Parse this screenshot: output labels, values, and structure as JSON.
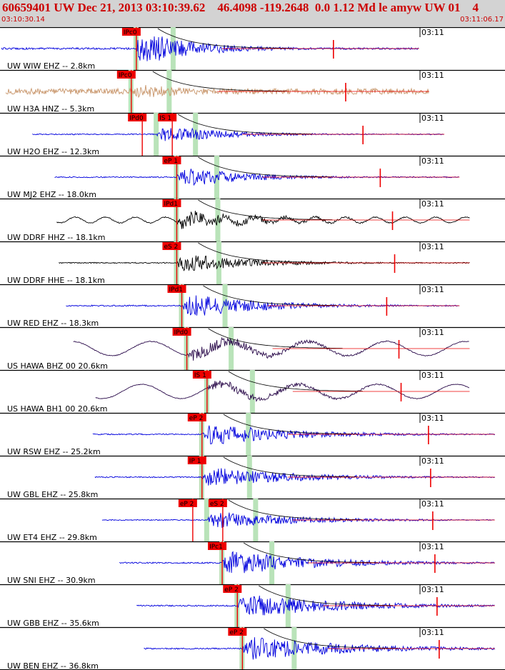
{
  "header": {
    "title": "60659401 UW Dec 21, 2013 03:10:39.62    46.4098 -119.2648  0.0 1.12 Md le amyw UW 01    4",
    "start_time": "03:10:30.14",
    "end_time": "03:11:06.17"
  },
  "colors": {
    "header_bg": "#d3d3d3",
    "header_text": "#cc0000",
    "blue_trace": "#0000dd",
    "tan_trace": "#c8956a",
    "black_trace": "#000000",
    "purple_trace": "#2a0a4a",
    "pick_red": "#ee0000",
    "window_green": "#b9e3b9"
  },
  "chart_data": {
    "type": "line",
    "title": "",
    "time_range": [
      "03:10:30.14",
      "03:11:06.17"
    ],
    "grid": false,
    "traces": [
      {
        "label": "UW WIW EHZ -- 2.8km",
        "tick": "03:11",
        "color": "blue",
        "picks": [
          "IPc0"
        ],
        "onset": 0.27,
        "end": 0.83,
        "amp": 1.0,
        "style": "spike"
      },
      {
        "label": "UW H3A HNZ -- 5.3km",
        "tick": "03:11",
        "color": "tan",
        "picks": [
          "IPc0"
        ],
        "onset": 0.26,
        "end": 0.85,
        "amp": 0.45,
        "style": "noisy"
      },
      {
        "label": "UW H2O EHZ -- 12.3km",
        "tick": "03:11",
        "color": "blue",
        "picks": [
          "IPd0",
          "IS 1"
        ],
        "onset": 0.31,
        "end": 0.88,
        "amp": 0.55,
        "style": "normal"
      },
      {
        "label": "UW MJ2 EHZ -- 18.0km",
        "tick": "03:11",
        "color": "blue",
        "picks": [
          "eP 1"
        ],
        "onset": 0.35,
        "end": 0.91,
        "amp": 0.6,
        "style": "normal"
      },
      {
        "label": "UW DDRF HHZ -- 18.1km",
        "tick": "03:11",
        "color": "black",
        "picks": [
          "IPd1"
        ],
        "onset": 0.35,
        "end": 0.93,
        "amp": 0.5,
        "style": "wavy"
      },
      {
        "label": "UW DDRF HHE -- 18.1km",
        "tick": "03:11",
        "color": "black",
        "picks": [
          "eS 2"
        ],
        "onset": 0.35,
        "end": 0.93,
        "amp": 0.55,
        "style": "normal"
      },
      {
        "label": "UW RED EHZ -- 18.3km",
        "tick": "03:11",
        "color": "blue",
        "picks": [
          "IPd1"
        ],
        "onset": 0.36,
        "end": 0.91,
        "amp": 0.7,
        "style": "normal"
      },
      {
        "label": "US HAWA BHZ 00 20.6km",
        "tick": "03:11",
        "color": "purple",
        "picks": [
          "IPd0"
        ],
        "onset": 0.37,
        "end": 0.93,
        "amp": 0.4,
        "style": "swell"
      },
      {
        "label": "US HAWA BH1 00 20.6km",
        "tick": "03:11",
        "color": "purple",
        "picks": [
          "IS 1"
        ],
        "onset": 0.41,
        "end": 0.93,
        "amp": 0.3,
        "style": "swell"
      },
      {
        "label": "UW RSW EHZ -- 25.2km",
        "tick": "03:11",
        "color": "blue",
        "picks": [
          "eP 2"
        ],
        "onset": 0.4,
        "end": 0.98,
        "amp": 0.65,
        "style": "normal"
      },
      {
        "label": "UW GBL EHZ -- 25.8km",
        "tick": "03:11",
        "color": "blue",
        "picks": [
          "IP 1"
        ],
        "onset": 0.4,
        "end": 0.98,
        "amp": 0.6,
        "style": "normal"
      },
      {
        "label": "UW ET4 EHZ -- 29.8km",
        "tick": "03:11",
        "color": "blue",
        "picks": [
          "eP 2",
          "eS 2"
        ],
        "onset": 0.41,
        "end": 0.98,
        "amp": 0.5,
        "style": "normal"
      },
      {
        "label": "UW SNI EHZ -- 30.9km",
        "tick": "03:11",
        "color": "blue",
        "picks": [
          "IPc1"
        ],
        "onset": 0.44,
        "end": 0.98,
        "amp": 0.7,
        "style": "normal"
      },
      {
        "label": "UW GBB EHZ -- 35.6km",
        "tick": "03:11",
        "color": "blue",
        "picks": [
          "eP 2"
        ],
        "onset": 0.47,
        "end": 0.98,
        "amp": 0.7,
        "style": "normal"
      },
      {
        "label": "UW BEN EHZ -- 36.8km",
        "tick": "03:11",
        "color": "blue",
        "picks": [
          "eP 2"
        ],
        "onset": 0.48,
        "end": 0.98,
        "amp": 0.7,
        "style": "normal"
      }
    ]
  }
}
